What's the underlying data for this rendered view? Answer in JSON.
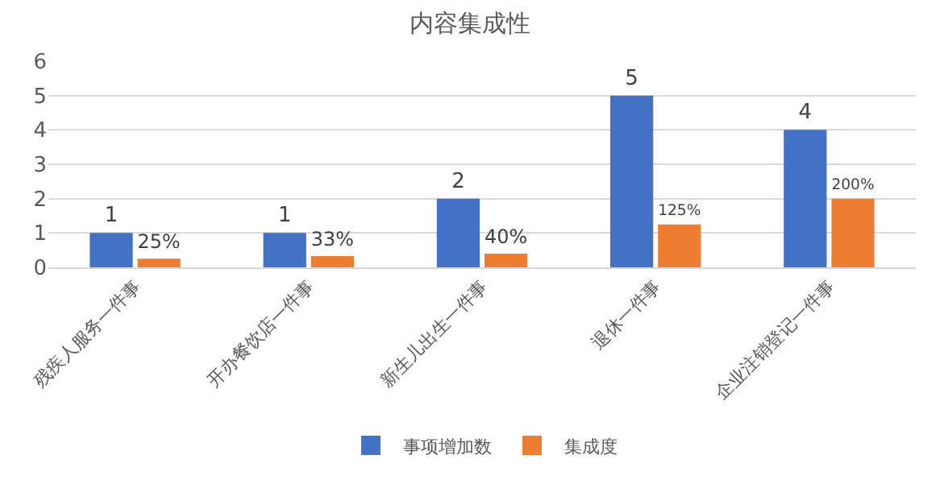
{
  "chart_data": {
    "type": "bar",
    "title": "内容集成性",
    "categories": [
      "残疾人服务一件事",
      "开办餐饮店一件事",
      "新生儿出生一件事",
      "退休一件事",
      "企业注销登记一件事"
    ],
    "series": [
      {
        "name": "事项增加数",
        "color": "#4472c4",
        "values": [
          1,
          1,
          2,
          5,
          4
        ],
        "value_labels": [
          "1",
          "1",
          "2",
          "5",
          "4"
        ]
      },
      {
        "name": "集成度",
        "color": "#ed7d31",
        "values": [
          0.25,
          0.33,
          0.4,
          1.25,
          2.0
        ],
        "value_labels": [
          "25%",
          "33%",
          "40%",
          "125%",
          "200%"
        ]
      }
    ],
    "ylim": [
      0,
      6
    ],
    "yticks": [
      0,
      1,
      2,
      3,
      4,
      5,
      6
    ],
    "grid": "y",
    "legend": "bottom"
  }
}
